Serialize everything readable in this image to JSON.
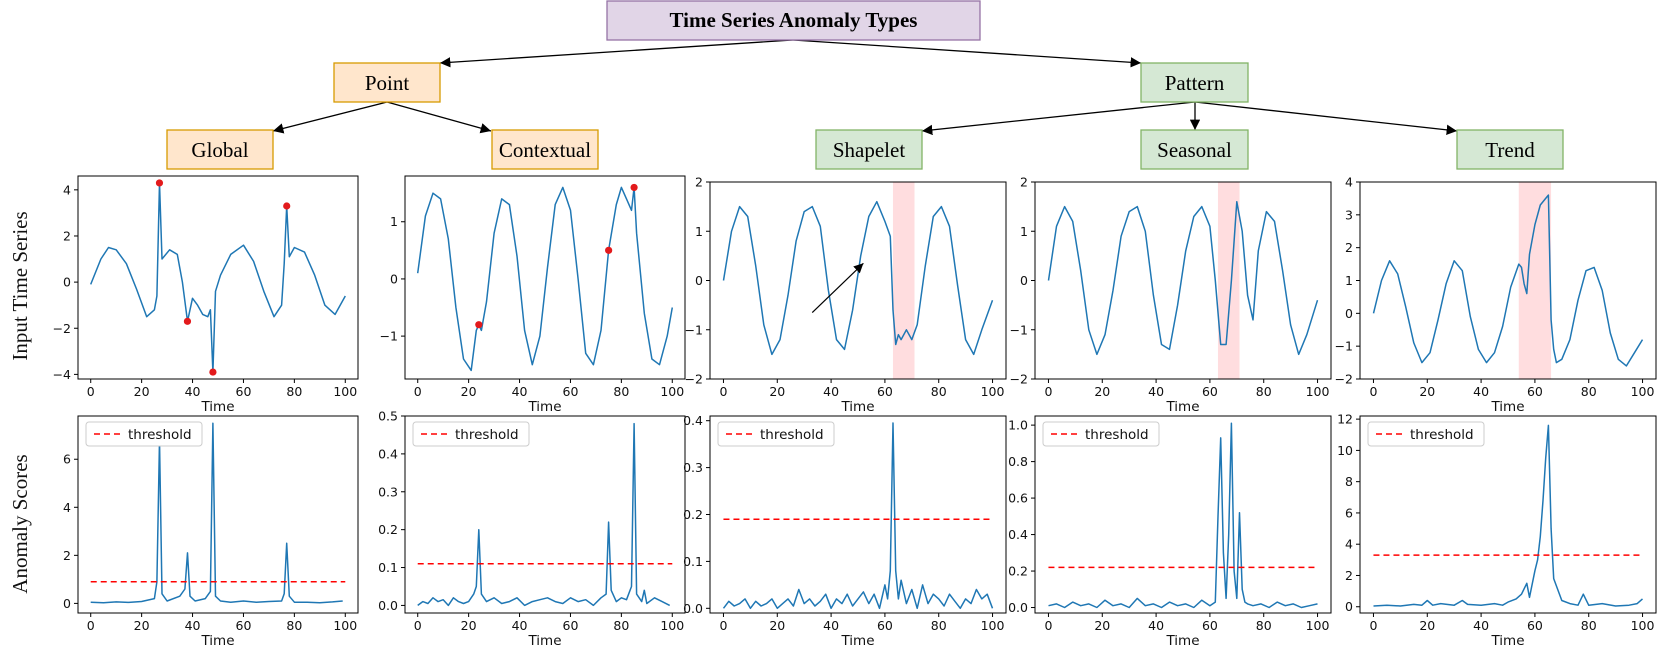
{
  "diagram": {
    "root": "Time Series Anomaly Types",
    "level1": [
      "Point",
      "Pattern"
    ],
    "level2": [
      "Global",
      "Contextual",
      "Shapelet",
      "Seasonal",
      "Trend"
    ],
    "row_labels": [
      "Input Time Series",
      "Anomaly Scores"
    ],
    "colors": {
      "root_fill": "#e1d5e7",
      "root_stroke": "#9673a6",
      "point_fill": "#ffe6cc",
      "point_stroke": "#d79b00",
      "pattern_fill": "#d5e8d4",
      "pattern_stroke": "#82b366",
      "series": "#1f77b4",
      "threshold": "#ff0000",
      "marker": "#e31a1c",
      "band": "#ffb3b8"
    }
  },
  "chart_data": [
    {
      "id": "global-input",
      "type": "line",
      "xlabel": "Time",
      "ylabel": "",
      "xlim": [
        -5,
        105
      ],
      "ylim": [
        -4.2,
        4.6
      ],
      "xticks": [
        "0",
        "20",
        "40",
        "60",
        "80",
        "100"
      ],
      "yticks": [
        "−4",
        "−2",
        "0",
        "2",
        "4"
      ],
      "ytick_values": [
        -4,
        -2,
        0,
        2,
        4
      ],
      "x": [
        0,
        4,
        7,
        10,
        14,
        18,
        22,
        25,
        26,
        27,
        28,
        31,
        34,
        36,
        38,
        40,
        42,
        44,
        46,
        47,
        48,
        49,
        51,
        55,
        60,
        64,
        68,
        72,
        75,
        76,
        77,
        78,
        80,
        84,
        88,
        92,
        96,
        100
      ],
      "y": [
        -0.1,
        1.0,
        1.5,
        1.4,
        0.8,
        -0.3,
        -1.5,
        -1.2,
        -0.6,
        4.3,
        1.0,
        1.4,
        1.2,
        0.0,
        -1.7,
        -0.7,
        -1.0,
        -1.4,
        -1.5,
        -1.2,
        -3.9,
        -0.4,
        0.3,
        1.2,
        1.6,
        0.9,
        -0.4,
        -1.5,
        -1.0,
        0.8,
        3.3,
        1.1,
        1.5,
        1.3,
        0.3,
        -1.0,
        -1.4,
        -0.6
      ],
      "markers": [
        {
          "x": 27,
          "y": 4.3
        },
        {
          "x": 38,
          "y": -1.7
        },
        {
          "x": 48,
          "y": -3.9
        },
        {
          "x": 77,
          "y": 3.3
        }
      ]
    },
    {
      "id": "contextual-input",
      "type": "line",
      "xlabel": "Time",
      "ylabel": "",
      "xlim": [
        -5,
        105
      ],
      "ylim": [
        -1.75,
        1.8
      ],
      "xticks": [
        "0",
        "20",
        "40",
        "60",
        "80",
        "100"
      ],
      "yticks": [
        "−1",
        "0",
        "1"
      ],
      "ytick_values": [
        -1,
        0,
        1
      ],
      "x": [
        0,
        3,
        6,
        9,
        12,
        15,
        18,
        21,
        23,
        24,
        25,
        27,
        30,
        33,
        36,
        39,
        42,
        45,
        48,
        51,
        54,
        57,
        60,
        63,
        66,
        69,
        72,
        75,
        78,
        80,
        82,
        84,
        85,
        86,
        89,
        92,
        95,
        98,
        100
      ],
      "y": [
        0.1,
        1.1,
        1.5,
        1.4,
        0.7,
        -0.5,
        -1.4,
        -1.6,
        -0.9,
        -0.8,
        -0.9,
        -0.4,
        0.8,
        1.4,
        1.3,
        0.4,
        -0.9,
        -1.5,
        -1.0,
        0.2,
        1.3,
        1.6,
        1.2,
        0.0,
        -1.3,
        -1.5,
        -0.9,
        0.5,
        1.3,
        1.6,
        1.4,
        1.2,
        1.6,
        0.8,
        -0.6,
        -1.4,
        -1.5,
        -1.0,
        -0.5
      ],
      "markers": [
        {
          "x": 24,
          "y": -0.8
        },
        {
          "x": 75,
          "y": 0.5
        },
        {
          "x": 85,
          "y": 1.6
        }
      ]
    },
    {
      "id": "shapelet-input",
      "type": "line",
      "xlabel": "Time",
      "ylabel": "",
      "xlim": [
        -5,
        105
      ],
      "ylim": [
        -2,
        2
      ],
      "xticks": [
        "0",
        "20",
        "40",
        "60",
        "80",
        "100"
      ],
      "yticks": [
        "−2",
        "−1",
        "0",
        "1",
        "2"
      ],
      "ytick_values": [
        -2,
        -1,
        0,
        1,
        2
      ],
      "x": [
        0,
        3,
        6,
        9,
        12,
        15,
        18,
        21,
        24,
        27,
        30,
        33,
        36,
        39,
        42,
        45,
        48,
        51,
        54,
        57,
        60,
        62,
        63,
        64,
        65,
        66,
        68,
        70,
        72,
        75,
        78,
        81,
        84,
        87,
        90,
        93,
        96,
        100
      ],
      "y": [
        0.0,
        1.0,
        1.5,
        1.3,
        0.3,
        -0.9,
        -1.5,
        -1.2,
        -0.3,
        0.8,
        1.4,
        1.5,
        1.1,
        -0.2,
        -1.2,
        -1.4,
        -0.6,
        0.5,
        1.3,
        1.6,
        1.2,
        0.9,
        -0.6,
        -1.3,
        -1.1,
        -1.2,
        -1.0,
        -1.2,
        -0.9,
        0.3,
        1.3,
        1.5,
        1.1,
        -0.1,
        -1.2,
        -1.5,
        -1.0,
        -0.4
      ],
      "band": [
        63,
        71
      ],
      "arrow": {
        "from": [
          33,
          -0.65
        ],
        "to": [
          52,
          0.35
        ]
      }
    },
    {
      "id": "seasonal-input",
      "type": "line",
      "xlabel": "Time",
      "ylabel": "",
      "xlim": [
        -5,
        105
      ],
      "ylim": [
        -2,
        2
      ],
      "xticks": [
        "0",
        "20",
        "40",
        "60",
        "80",
        "100"
      ],
      "yticks": [
        "−2",
        "−1",
        "0",
        "1",
        "2"
      ],
      "ytick_values": [
        -2,
        -1,
        0,
        1,
        2
      ],
      "x": [
        0,
        3,
        6,
        9,
        12,
        15,
        18,
        21,
        24,
        27,
        30,
        33,
        36,
        39,
        42,
        45,
        48,
        51,
        54,
        57,
        60,
        62,
        64,
        66,
        68,
        70,
        72,
        74,
        76,
        78,
        81,
        84,
        87,
        90,
        93,
        96,
        100
      ],
      "y": [
        0.0,
        1.1,
        1.5,
        1.2,
        0.2,
        -1.0,
        -1.5,
        -1.1,
        -0.2,
        0.9,
        1.4,
        1.5,
        1.0,
        -0.3,
        -1.3,
        -1.4,
        -0.5,
        0.6,
        1.3,
        1.5,
        1.1,
        0.0,
        -1.3,
        -1.3,
        0.0,
        1.6,
        1.0,
        -0.3,
        -0.8,
        0.6,
        1.4,
        1.2,
        0.2,
        -0.9,
        -1.5,
        -1.1,
        -0.4
      ],
      "band": [
        63,
        71
      ]
    },
    {
      "id": "trend-input",
      "type": "line",
      "xlabel": "Time",
      "ylabel": "",
      "xlim": [
        -5,
        105
      ],
      "ylim": [
        -2,
        4
      ],
      "xticks": [
        "0",
        "20",
        "40",
        "60",
        "80",
        "100"
      ],
      "yticks": [
        "−2",
        "−1",
        "0",
        "1",
        "2",
        "3",
        "4"
      ],
      "ytick_values": [
        -2,
        -1,
        0,
        1,
        2,
        3,
        4
      ],
      "x": [
        0,
        3,
        6,
        9,
        12,
        15,
        18,
        21,
        24,
        27,
        30,
        33,
        36,
        39,
        42,
        45,
        48,
        51,
        54,
        55,
        56,
        57,
        58,
        60,
        62,
        64,
        65,
        66,
        67,
        68,
        70,
        73,
        76,
        79,
        82,
        85,
        88,
        91,
        94,
        97,
        100
      ],
      "y": [
        0.0,
        1.0,
        1.6,
        1.2,
        0.2,
        -0.9,
        -1.5,
        -1.2,
        -0.2,
        0.9,
        1.6,
        1.3,
        -0.1,
        -1.1,
        -1.5,
        -1.2,
        -0.4,
        0.8,
        1.5,
        1.4,
        0.9,
        0.6,
        1.8,
        2.7,
        3.3,
        3.5,
        3.6,
        -0.2,
        -1.1,
        -1.5,
        -1.4,
        -0.8,
        0.4,
        1.3,
        1.4,
        0.7,
        -0.6,
        -1.4,
        -1.6,
        -1.2,
        -0.8
      ],
      "band": [
        54,
        66
      ]
    },
    {
      "id": "global-score",
      "type": "line",
      "xlabel": "Time",
      "ylabel": "",
      "xlim": [
        -5,
        105
      ],
      "ylim": [
        -0.4,
        7.8
      ],
      "xticks": [
        "0",
        "20",
        "40",
        "60",
        "80",
        "100"
      ],
      "yticks": [
        "0",
        "2",
        "4",
        "6"
      ],
      "ytick_values": [
        0,
        2,
        4,
        6
      ],
      "x": [
        0,
        5,
        10,
        15,
        20,
        25,
        26,
        27,
        28,
        30,
        35,
        37,
        38,
        39,
        41,
        45,
        47,
        48,
        49,
        51,
        55,
        60,
        65,
        70,
        75,
        76,
        77,
        78,
        80,
        85,
        90,
        95,
        99
      ],
      "y": [
        0.05,
        0.03,
        0.06,
        0.04,
        0.08,
        0.2,
        0.9,
        6.8,
        0.4,
        0.1,
        0.3,
        0.6,
        2.1,
        0.3,
        0.1,
        0.2,
        0.5,
        7.5,
        0.3,
        0.1,
        0.05,
        0.1,
        0.05,
        0.08,
        0.1,
        0.4,
        2.5,
        0.3,
        0.05,
        0.05,
        0.03,
        0.06,
        0.1
      ],
      "threshold": 0.9,
      "legend": "threshold"
    },
    {
      "id": "contextual-score",
      "type": "line",
      "xlabel": "Time",
      "ylabel": "",
      "xlim": [
        -5,
        105
      ],
      "ylim": [
        -0.02,
        0.5
      ],
      "xticks": [
        "0",
        "20",
        "40",
        "60",
        "80",
        "100"
      ],
      "yticks": [
        "0.0",
        "0.1",
        "0.2",
        "0.3",
        "0.4",
        "0.5"
      ],
      "ytick_values": [
        0,
        0.1,
        0.2,
        0.3,
        0.4,
        0.5
      ],
      "x": [
        0,
        2,
        4,
        6,
        8,
        10,
        12,
        14,
        16,
        18,
        20,
        22,
        23,
        24,
        25,
        27,
        30,
        33,
        36,
        39,
        42,
        45,
        48,
        51,
        54,
        57,
        60,
        63,
        66,
        69,
        72,
        74,
        75,
        76,
        78,
        80,
        82,
        84,
        85,
        86,
        88,
        89,
        90,
        93,
        96,
        99
      ],
      "y": [
        0.0,
        0.01,
        0.005,
        0.02,
        0.01,
        0.015,
        0.0,
        0.02,
        0.01,
        0.005,
        0.01,
        0.03,
        0.05,
        0.2,
        0.03,
        0.01,
        0.02,
        0.005,
        0.01,
        0.02,
        0.0,
        0.01,
        0.015,
        0.02,
        0.01,
        0.005,
        0.02,
        0.01,
        0.015,
        0.0,
        0.02,
        0.03,
        0.22,
        0.04,
        0.01,
        0.02,
        0.015,
        0.05,
        0.48,
        0.03,
        0.01,
        0.04,
        0.005,
        0.02,
        0.01,
        0.0
      ],
      "threshold": 0.11,
      "legend": "threshold"
    },
    {
      "id": "shapelet-score",
      "type": "line",
      "xlabel": "Time",
      "ylabel": "",
      "xlim": [
        -5,
        105
      ],
      "ylim": [
        -0.01,
        0.41
      ],
      "xticks": [
        "0",
        "20",
        "40",
        "60",
        "80",
        "100"
      ],
      "yticks": [
        "0.0",
        "0.1",
        "0.2",
        "0.3",
        "0.4"
      ],
      "ytick_values": [
        0,
        0.1,
        0.2,
        0.3,
        0.4
      ],
      "x": [
        0,
        2,
        4,
        6,
        8,
        10,
        12,
        14,
        16,
        18,
        20,
        22,
        24,
        26,
        28,
        30,
        32,
        34,
        36,
        38,
        40,
        42,
        44,
        46,
        48,
        50,
        52,
        54,
        56,
        58,
        60,
        61,
        62,
        63,
        64,
        65,
        66,
        68,
        70,
        72,
        74,
        76,
        78,
        80,
        82,
        84,
        86,
        88,
        90,
        92,
        94,
        96,
        98,
        100
      ],
      "y": [
        0.0,
        0.015,
        0.005,
        0.01,
        0.02,
        0.0,
        0.015,
        0.005,
        0.01,
        0.02,
        0.0,
        0.01,
        0.02,
        0.005,
        0.04,
        0.01,
        0.02,
        0.005,
        0.015,
        0.03,
        0.0,
        0.02,
        0.01,
        0.03,
        0.005,
        0.02,
        0.035,
        0.01,
        0.03,
        0.0,
        0.05,
        0.02,
        0.08,
        0.395,
        0.08,
        0.02,
        0.06,
        0.01,
        0.04,
        0.0,
        0.05,
        0.01,
        0.03,
        0.02,
        0.005,
        0.03,
        0.015,
        0.0,
        0.02,
        0.01,
        0.04,
        0.02,
        0.03,
        0.0
      ],
      "threshold": 0.19,
      "legend": "threshold"
    },
    {
      "id": "seasonal-score",
      "type": "line",
      "xlabel": "Time",
      "ylabel": "",
      "xlim": [
        -5,
        105
      ],
      "ylim": [
        -0.03,
        1.05
      ],
      "xticks": [
        "0",
        "20",
        "40",
        "60",
        "80",
        "100"
      ],
      "yticks": [
        "0.0",
        "0.2",
        "0.4",
        "0.6",
        "0.8",
        "1.0"
      ],
      "ytick_values": [
        0,
        0.2,
        0.4,
        0.6,
        0.8,
        1.0
      ],
      "x": [
        0,
        3,
        6,
        9,
        12,
        15,
        18,
        21,
        24,
        27,
        30,
        33,
        36,
        39,
        42,
        45,
        48,
        51,
        54,
        57,
        60,
        62,
        63,
        64,
        65,
        66,
        67,
        68,
        69,
        70,
        71,
        72,
        73,
        74,
        76,
        79,
        82,
        85,
        88,
        91,
        94,
        97,
        100
      ],
      "y": [
        0.01,
        0.02,
        0.0,
        0.03,
        0.01,
        0.02,
        0.0,
        0.04,
        0.01,
        0.02,
        0.0,
        0.05,
        0.01,
        0.02,
        0.0,
        0.03,
        0.01,
        0.02,
        0.0,
        0.04,
        0.01,
        0.03,
        0.5,
        0.93,
        0.3,
        0.05,
        0.4,
        1.01,
        0.2,
        0.05,
        0.52,
        0.1,
        0.03,
        0.02,
        0.01,
        0.02,
        0.0,
        0.03,
        0.01,
        0.02,
        0.0,
        0.01,
        0.02
      ],
      "threshold": 0.22,
      "legend": "threshold"
    },
    {
      "id": "trend-score",
      "type": "line",
      "xlabel": "Time",
      "ylabel": "",
      "xlim": [
        -5,
        105
      ],
      "ylim": [
        -0.4,
        12.2
      ],
      "xticks": [
        "0",
        "20",
        "40",
        "60",
        "80",
        "100"
      ],
      "yticks": [
        "0",
        "2",
        "4",
        "6",
        "8",
        "10",
        "12"
      ],
      "ytick_values": [
        0,
        2,
        4,
        6,
        8,
        10,
        12
      ],
      "x": [
        0,
        5,
        10,
        15,
        18,
        20,
        22,
        25,
        30,
        33,
        35,
        40,
        45,
        48,
        50,
        53,
        55,
        57,
        58,
        60,
        61,
        62,
        63,
        64,
        65,
        66,
        67,
        70,
        73,
        76,
        78,
        80,
        85,
        90,
        95,
        98,
        100
      ],
      "y": [
        0.05,
        0.1,
        0.05,
        0.15,
        0.1,
        0.4,
        0.1,
        0.2,
        0.1,
        0.4,
        0.15,
        0.1,
        0.2,
        0.1,
        0.3,
        0.5,
        0.8,
        1.5,
        0.6,
        2.3,
        3.0,
        4.5,
        6.8,
        9.5,
        11.6,
        5.0,
        1.8,
        0.4,
        0.2,
        0.1,
        0.8,
        0.1,
        0.2,
        0.05,
        0.1,
        0.2,
        0.5
      ],
      "threshold": 3.3,
      "legend": "threshold"
    }
  ]
}
